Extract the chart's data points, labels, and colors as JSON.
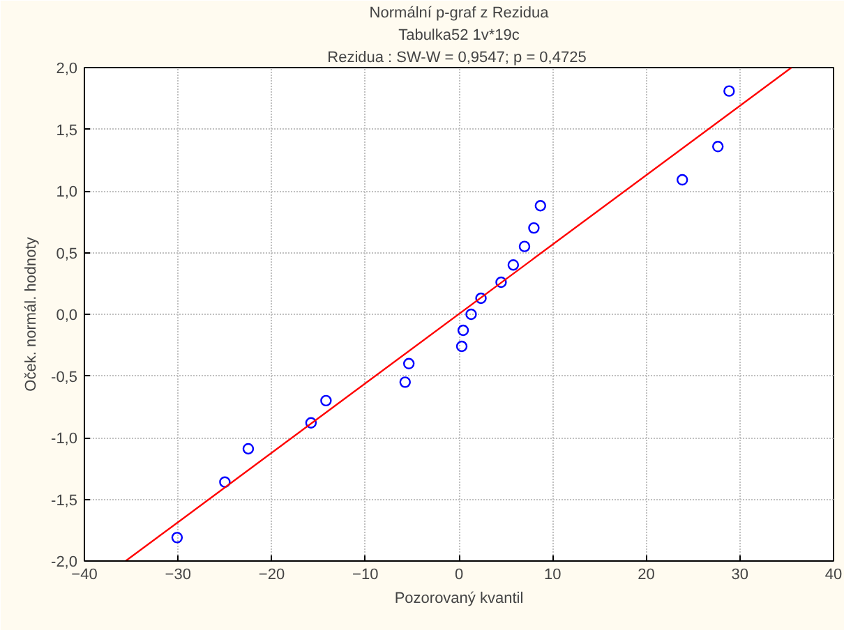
{
  "chart_data": {
    "type": "scatter",
    "title": "Normální p-graf z Rezidua",
    "subtitle": "Tabulka52 1v*19c",
    "annotations": [
      "Rezidua :  SW-W = 0,9547; p = 0,4725"
    ],
    "xlabel": "Pozorovaný kvantil",
    "ylabel": "Oček. normál. hodnoty",
    "xlim": [
      -40,
      40
    ],
    "ylim": [
      -2.0,
      2.0
    ],
    "xticks": [
      -40,
      -30,
      -20,
      -10,
      0,
      10,
      20,
      30,
      40
    ],
    "yticks": [
      {
        "value": -2.0,
        "label": "-2,0"
      },
      {
        "value": -1.5,
        "label": "-1,5"
      },
      {
        "value": -1.0,
        "label": "-1,0"
      },
      {
        "value": -0.5,
        "label": "-0,5"
      },
      {
        "value": 0.0,
        "label": "0,0"
      },
      {
        "value": 0.5,
        "label": "0,5"
      },
      {
        "value": 1.0,
        "label": "1,0"
      },
      {
        "value": 1.5,
        "label": "1,5"
      },
      {
        "value": 2.0,
        "label": "2,0"
      }
    ],
    "grid": true,
    "series": [
      {
        "marker": "circle",
        "color": "#0000ff",
        "x": [
          -30.1,
          -25.0,
          -22.5,
          -15.8,
          -14.2,
          -5.75,
          -5.35,
          0.3,
          0.45,
          1.3,
          2.35,
          4.5,
          5.8,
          7.0,
          8.0,
          8.7,
          23.85,
          27.65,
          28.85
        ],
        "values": [
          -1.81,
          -1.36,
          -1.09,
          -0.88,
          -0.7,
          -0.55,
          -0.4,
          -0.26,
          -0.13,
          0.0,
          0.13,
          0.26,
          0.4,
          0.55,
          0.7,
          0.88,
          1.09,
          1.36,
          1.81
        ]
      },
      {
        "type": "line",
        "color": "#ff0000",
        "line_style": "solid",
        "x": [
          -35.6,
          35.5
        ],
        "values": [
          -2.0,
          2.0
        ]
      }
    ]
  }
}
